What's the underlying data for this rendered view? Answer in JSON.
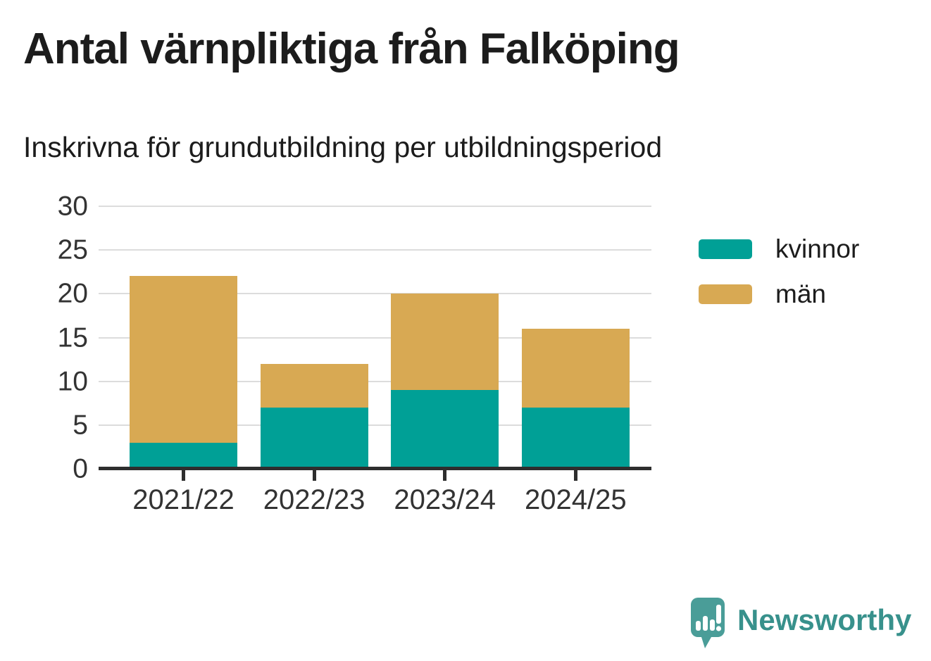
{
  "page": {
    "title": "Antal värnpliktiga från Falköping",
    "subtitle": "Inskrivna för grundutbildning per utbildningsperiod"
  },
  "chart_data": {
    "type": "bar",
    "stacked": true,
    "title": "Antal värnpliktiga från Falköping",
    "subtitle": "Inskrivna för grundutbildning per utbildningsperiod",
    "categories": [
      "2021/22",
      "2022/23",
      "2023/24",
      "2024/25"
    ],
    "series": [
      {
        "name": "kvinnor",
        "color": "#00A096",
        "values": [
          3,
          7,
          9,
          7
        ]
      },
      {
        "name": "män",
        "color": "#D8A953",
        "values": [
          19,
          5,
          11,
          9
        ]
      }
    ],
    "totals": [
      22,
      12,
      20,
      16
    ],
    "xlabel": "",
    "ylabel": "",
    "ylim": [
      0,
      30
    ],
    "yticks": [
      0,
      5,
      10,
      15,
      20,
      25,
      30
    ],
    "grid": true,
    "legend_position": "right"
  },
  "branding": {
    "logo_text": "Newsworthy",
    "logo_text_color": "#38918C",
    "logo_icon_color": "#4A9D98"
  },
  "colors": {
    "axis": "#2E2E2E",
    "gridline": "#DCDCDC",
    "title_text": "#1C1C1C",
    "tick_label": "#333333"
  }
}
